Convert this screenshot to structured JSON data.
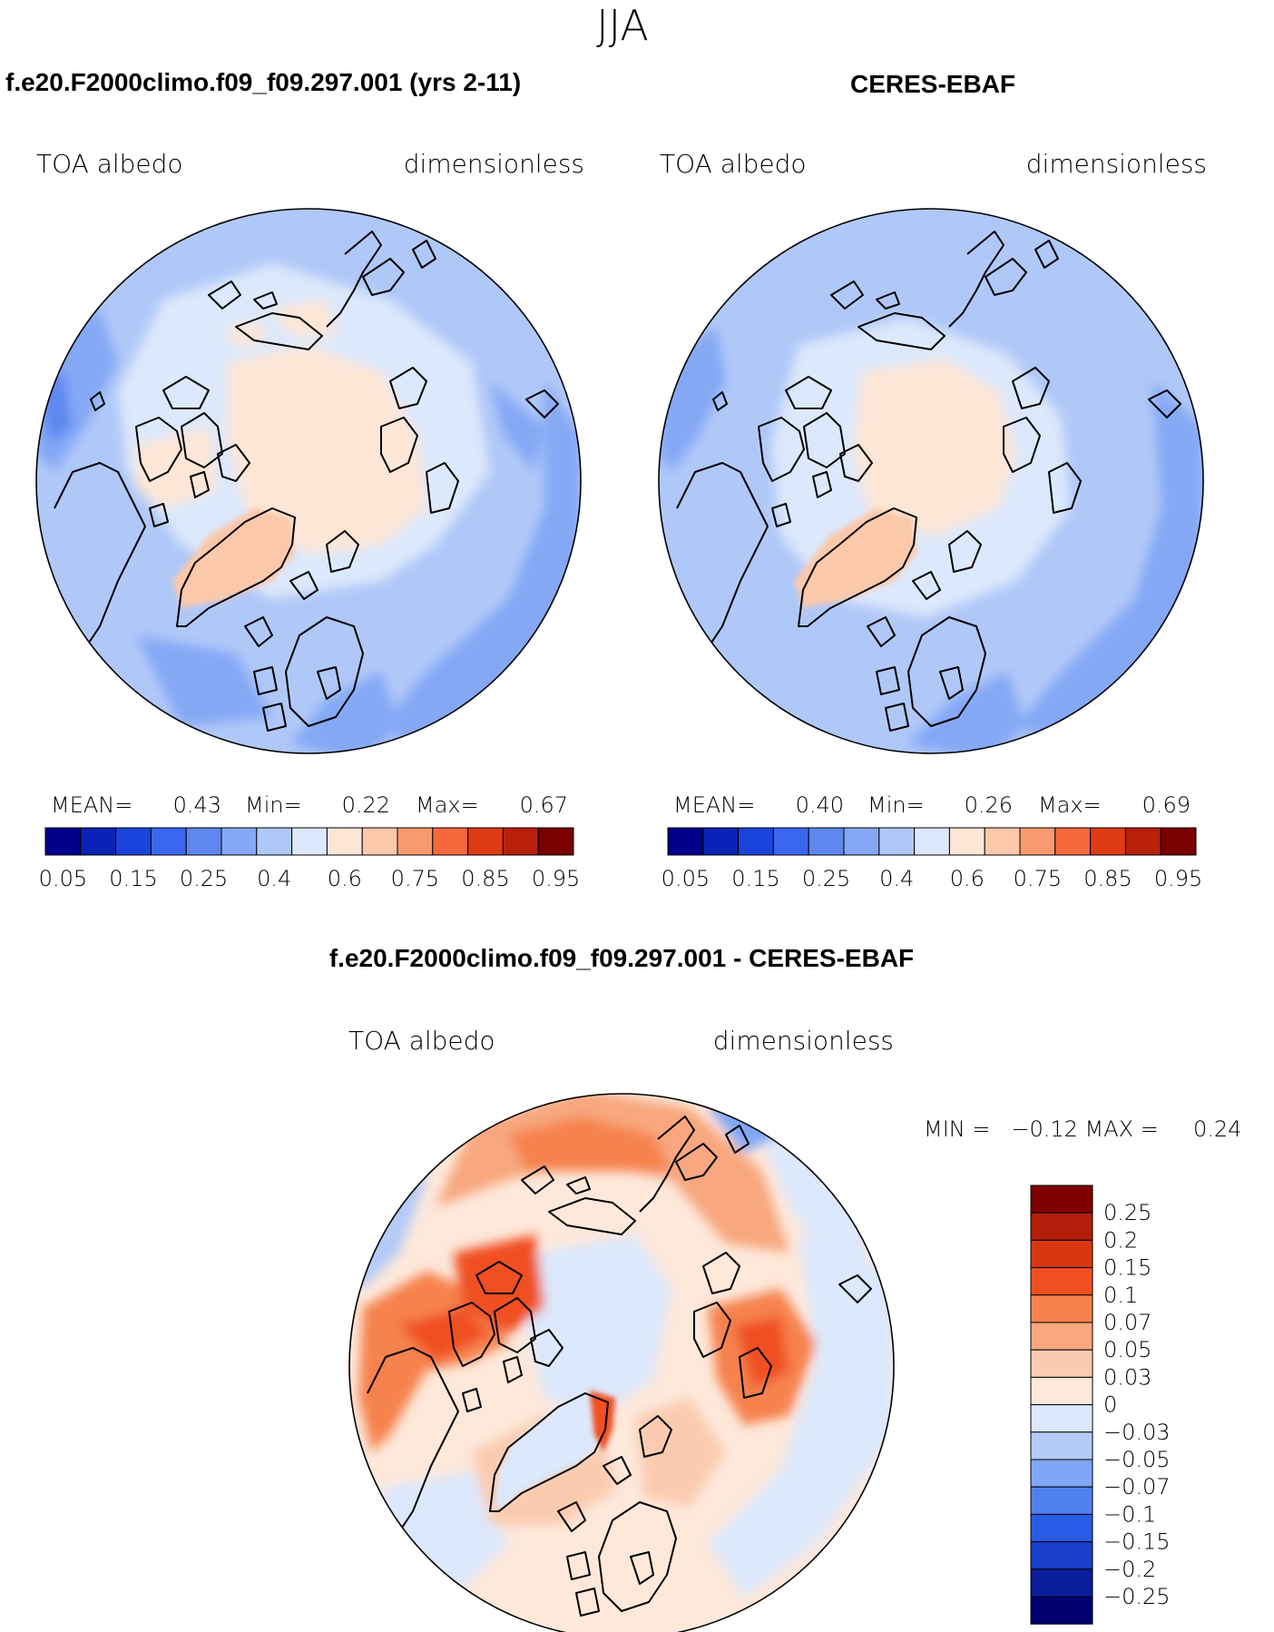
{
  "page": {
    "title": "JJA"
  },
  "colors": {
    "seq": [
      "#00008b",
      "#0a22b5",
      "#1a44dc",
      "#3a66f0",
      "#5e88f0",
      "#85a8f5",
      "#b0c8f8",
      "#dce8fb",
      "#fde6d6",
      "#fbc8aa",
      "#f89a70",
      "#f4693c",
      "#e03c14",
      "#b8200a",
      "#7b0000"
    ],
    "diff": [
      "#00006e",
      "#0a1e9a",
      "#1a3ec8",
      "#2a5ae8",
      "#5080f0",
      "#80a6f5",
      "#b4cbf8",
      "#dce8fb",
      "#fde8da",
      "#fbcbb0",
      "#f8a77e",
      "#f6824e",
      "#f05020",
      "#d93712",
      "#b11e0a",
      "#800000"
    ],
    "coast": "#000000"
  },
  "panels": [
    {
      "id": "model",
      "title": "f.e20.F2000climo.f09_f09.297.001 (yrs 2-11)",
      "var_label": "TOA albedo",
      "units": "dimensionless",
      "stats": {
        "mean_label": "MEAN=",
        "mean": "0.43",
        "min_label": "Min=",
        "min": "0.22",
        "max_label": "Max=",
        "max": "0.67"
      },
      "ticks": [
        "0.05",
        "0.15",
        "0.25",
        "0.4",
        "0.6",
        "0.75",
        "0.85",
        "0.95"
      ]
    },
    {
      "id": "obs",
      "title": "CERES-EBAF",
      "var_label": "TOA albedo",
      "units": "dimensionless",
      "stats": {
        "mean_label": "MEAN=",
        "mean": "0.40",
        "min_label": "Min=",
        "min": "0.26",
        "max_label": "Max=",
        "max": "0.69"
      },
      "ticks": [
        "0.05",
        "0.15",
        "0.25",
        "0.4",
        "0.6",
        "0.75",
        "0.85",
        "0.95"
      ]
    }
  ],
  "diff": {
    "title": "f.e20.F2000climo.f09_f09.297.001 - CERES-EBAF",
    "var_label": "TOA albedo",
    "units": "dimensionless",
    "minmax": "MIN =   −0.12 MAX =     0.24",
    "ticks": [
      "0.25",
      "0.2",
      "0.15",
      "0.1",
      "0.07",
      "0.05",
      "0.03",
      "0",
      "−0.03",
      "−0.05",
      "−0.07",
      "−0.1",
      "−0.15",
      "−0.2",
      "−0.25"
    ]
  }
}
